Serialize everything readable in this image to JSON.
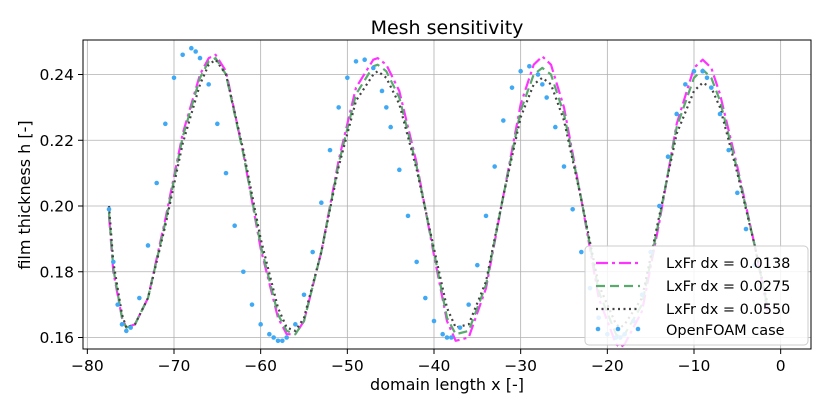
{
  "chart_data": {
    "type": "line",
    "title": "Mesh sensitivity",
    "xlabel": "domain length x [-]",
    "ylabel": "film thickness h [-]",
    "xlim": [
      -80.5,
      3.5
    ],
    "ylim": [
      0.1565,
      0.2505
    ],
    "grid": true,
    "legend_position": "lower-right",
    "xticks": [
      -80,
      -70,
      -60,
      -50,
      -40,
      -30,
      -20,
      -10,
      0
    ],
    "xtick_labels": [
      "−80",
      "−70",
      "−60",
      "−50",
      "−40",
      "−30",
      "−20",
      "−10",
      "0"
    ],
    "yticks": [
      0.16,
      0.18,
      0.2,
      0.22,
      0.24
    ],
    "ytick_labels": [
      "0.16",
      "0.18",
      "0.20",
      "0.22",
      "0.24"
    ],
    "series": [
      {
        "name": "LxFr dx = 0.0138",
        "color": "#ff33ff",
        "style": "dashdot",
        "x": [
          -77.5,
          -77.0,
          -76.0,
          -75.5,
          -74.5,
          -73.0,
          -71.0,
          -69.0,
          -67.0,
          -66.0,
          -65.2,
          -64.0,
          -62.0,
          -60.0,
          -58.0,
          -57.0,
          -56.0,
          -55.0,
          -53.0,
          -51.0,
          -49.0,
          -47.0,
          -46.5,
          -45.5,
          -44.0,
          -42.0,
          -40.0,
          -38.5,
          -37.5,
          -36.0,
          -34.0,
          -32.0,
          -30.0,
          -28.5,
          -27.5,
          -26.5,
          -25.0,
          -23.0,
          -21.0,
          -19.0,
          -18.5,
          -18.0,
          -16.0,
          -14.0,
          -12.0,
          -10.0,
          -9.0,
          -8.0,
          -7.0,
          -5.0,
          -3.0,
          -1.5
        ],
        "y": [
          0.197,
          0.18,
          0.166,
          0.163,
          0.164,
          0.172,
          0.196,
          0.222,
          0.24,
          0.245,
          0.246,
          0.241,
          0.216,
          0.187,
          0.166,
          0.161,
          0.161,
          0.165,
          0.186,
          0.214,
          0.236,
          0.2445,
          0.245,
          0.243,
          0.235,
          0.213,
          0.185,
          0.165,
          0.159,
          0.16,
          0.175,
          0.203,
          0.231,
          0.243,
          0.2455,
          0.243,
          0.23,
          0.202,
          0.172,
          0.158,
          0.157,
          0.158,
          0.168,
          0.195,
          0.225,
          0.242,
          0.2445,
          0.242,
          0.234,
          0.212,
          0.188,
          0.168
        ]
      },
      {
        "name": "LxFr dx = 0.0275",
        "color": "#5aaa6e",
        "style": "dashed",
        "x": [
          -77.5,
          -77.0,
          -76.0,
          -75.5,
          -74.5,
          -73.0,
          -71.0,
          -69.0,
          -67.0,
          -66.0,
          -65.2,
          -64.0,
          -62.0,
          -60.0,
          -58.0,
          -57.0,
          -56.0,
          -55.0,
          -53.0,
          -51.0,
          -49.0,
          -47.0,
          -46.5,
          -45.5,
          -44.0,
          -42.0,
          -40.0,
          -38.5,
          -37.5,
          -36.0,
          -34.0,
          -32.0,
          -30.0,
          -28.5,
          -27.5,
          -26.5,
          -25.0,
          -23.0,
          -21.0,
          -19.0,
          -18.5,
          -18.0,
          -16.0,
          -14.0,
          -12.0,
          -10.0,
          -9.0,
          -8.0,
          -7.0,
          -5.0,
          -3.0,
          -1.5
        ],
        "y": [
          0.198,
          0.181,
          0.166,
          0.163,
          0.164,
          0.172,
          0.195,
          0.221,
          0.239,
          0.244,
          0.245,
          0.24,
          0.216,
          0.188,
          0.167,
          0.162,
          0.161,
          0.165,
          0.186,
          0.213,
          0.234,
          0.2425,
          0.243,
          0.241,
          0.233,
          0.212,
          0.186,
          0.166,
          0.161,
          0.162,
          0.176,
          0.203,
          0.229,
          0.24,
          0.242,
          0.24,
          0.228,
          0.202,
          0.174,
          0.161,
          0.16,
          0.161,
          0.17,
          0.196,
          0.224,
          0.239,
          0.2415,
          0.239,
          0.232,
          0.211,
          0.188,
          0.169
        ]
      },
      {
        "name": "LxFr dx = 0.0550",
        "color": "#444444",
        "style": "dotted",
        "x": [
          -77.5,
          -77.0,
          -76.0,
          -75.5,
          -74.5,
          -73.0,
          -71.0,
          -69.0,
          -67.0,
          -66.0,
          -65.2,
          -64.0,
          -62.0,
          -60.0,
          -58.0,
          -57.0,
          -56.0,
          -55.0,
          -53.0,
          -51.0,
          -49.0,
          -47.0,
          -46.5,
          -45.5,
          -44.0,
          -42.0,
          -40.0,
          -38.5,
          -37.5,
          -36.0,
          -34.0,
          -32.0,
          -30.0,
          -28.5,
          -27.5,
          -26.5,
          -25.0,
          -23.0,
          -21.0,
          -19.0,
          -18.5,
          -18.0,
          -16.0,
          -14.0,
          -12.0,
          -10.0,
          -9.0,
          -8.0,
          -7.0,
          -5.0,
          -3.0,
          -1.5
        ],
        "y": [
          0.2,
          0.183,
          0.167,
          0.163,
          0.164,
          0.172,
          0.194,
          0.219,
          0.237,
          0.243,
          0.2445,
          0.24,
          0.217,
          0.19,
          0.169,
          0.163,
          0.162,
          0.166,
          0.186,
          0.212,
          0.232,
          0.24,
          0.241,
          0.239,
          0.231,
          0.211,
          0.187,
          0.169,
          0.163,
          0.164,
          0.177,
          0.203,
          0.227,
          0.237,
          0.239,
          0.237,
          0.226,
          0.202,
          0.176,
          0.164,
          0.163,
          0.164,
          0.172,
          0.197,
          0.222,
          0.235,
          0.2375,
          0.236,
          0.23,
          0.21,
          0.188,
          0.17
        ]
      },
      {
        "name": "OpenFOAM case",
        "color": "#3fa9f5",
        "style": "markers",
        "x": [
          -77.5,
          -77.0,
          -76.5,
          -76.0,
          -75.5,
          -75.0,
          -74.0,
          -73.0,
          -72.0,
          -71.0,
          -70.0,
          -69.0,
          -68.0,
          -67.5,
          -67.0,
          -66.0,
          -65.0,
          -64.0,
          -63.0,
          -62.0,
          -61.0,
          -60.0,
          -59.0,
          -58.5,
          -58.0,
          -57.5,
          -57.0,
          -56.0,
          -55.0,
          -54.0,
          -53.0,
          -52.0,
          -51.0,
          -50.0,
          -49.0,
          -48.0,
          -47.0,
          -46.0,
          -45.5,
          -45.0,
          -44.0,
          -43.0,
          -42.0,
          -41.0,
          -40.0,
          -39.0,
          -38.5,
          -38.0,
          -37.0,
          -36.0,
          -35.0,
          -34.0,
          -33.0,
          -32.0,
          -31.0,
          -30.0,
          -29.0,
          -28.0,
          -27.5,
          -27.0,
          -26.0,
          -25.0,
          -24.0,
          -23.0,
          -22.0,
          -21.0,
          -20.0,
          -19.0,
          -18.5,
          -18.0,
          -17.0,
          -16.0,
          -15.0,
          -14.0,
          -13.0,
          -12.0,
          -11.0,
          -10.0,
          -9.0,
          -8.5,
          -8.0,
          -7.0,
          -6.0,
          -5.0,
          -4.0,
          -3.0
        ],
        "y": [
          0.199,
          0.183,
          0.17,
          0.164,
          0.162,
          0.163,
          0.172,
          0.188,
          0.207,
          0.225,
          0.239,
          0.246,
          0.248,
          0.247,
          0.245,
          0.237,
          0.225,
          0.21,
          0.194,
          0.18,
          0.17,
          0.164,
          0.161,
          0.16,
          0.159,
          0.159,
          0.16,
          0.164,
          0.173,
          0.186,
          0.201,
          0.217,
          0.23,
          0.239,
          0.244,
          0.2445,
          0.242,
          0.235,
          0.23,
          0.224,
          0.211,
          0.197,
          0.183,
          0.172,
          0.165,
          0.161,
          0.16,
          0.16,
          0.163,
          0.17,
          0.182,
          0.197,
          0.212,
          0.226,
          0.236,
          0.241,
          0.2425,
          0.24,
          0.237,
          0.233,
          0.224,
          0.212,
          0.199,
          0.186,
          0.175,
          0.166,
          0.161,
          0.16,
          0.16,
          0.161,
          0.165,
          0.173,
          0.186,
          0.2,
          0.215,
          0.228,
          0.237,
          0.241,
          0.241,
          0.239,
          0.236,
          0.228,
          0.217,
          0.204,
          0.193,
          0.182
        ]
      }
    ]
  }
}
